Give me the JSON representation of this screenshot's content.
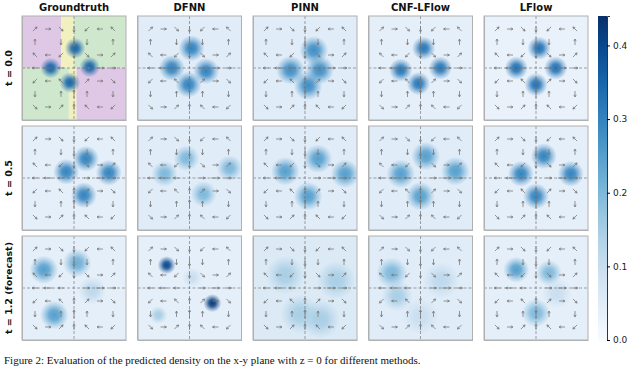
{
  "chart_data": {
    "type": "heatmap",
    "caption": "Figure 2: Evaluation of the predicted density on the x-y plane with z = 0 for different methods.",
    "columns": [
      "Groundtruth",
      "DFNN",
      "PINN",
      "CNF-LFlow",
      "LFlow"
    ],
    "rows": [
      "t = 0.0",
      "t = 0.5",
      "t = 1.2 (forecast)"
    ],
    "xlim": [
      -1,
      1
    ],
    "ylim": [
      -1,
      1
    ],
    "xticks": [
      0
    ],
    "yticks": [
      0
    ],
    "grid": true,
    "tick_labels": false,
    "colorbar": {
      "range": [
        0,
        0.44
      ],
      "ticks": [
        {
          "value": 0,
          "label": "0.0"
        },
        0.1,
        0.2,
        0.3,
        0.4
      ]
    },
    "quiver": {
      "x": [
        -0.75,
        -0.5,
        -0.25,
        0,
        0.25,
        0.5,
        0.75
      ],
      "y": [
        -0.75,
        -0.5,
        -0.25,
        0,
        0.25,
        0.5,
        0.75
      ],
      "u": [
        [
          0.5,
          0.71,
          0.5,
          0,
          -0.5,
          -0.71,
          -0.5
        ],
        [
          0,
          0,
          0,
          0,
          0,
          0,
          0
        ],
        [
          -0.5,
          -0.71,
          -0.5,
          0,
          0.5,
          0.71,
          0.5
        ],
        [
          -0.71,
          -1,
          -0.71,
          0,
          0.71,
          1,
          0.71
        ],
        [
          -0.5,
          -0.71,
          -0.5,
          0,
          0.5,
          0.71,
          0.5
        ],
        [
          0,
          0,
          0,
          0,
          0,
          0,
          0
        ],
        [
          0.5,
          0.71,
          0.5,
          0,
          -0.5,
          -0.71,
          -0.5
        ]
      ],
      "v": [
        [
          -0.5,
          0,
          0.5,
          0.71,
          0.5,
          0,
          -0.5
        ],
        [
          -0.71,
          0,
          0.71,
          1,
          0.71,
          0,
          -0.71
        ],
        [
          -0.5,
          0,
          0.5,
          0.71,
          0.5,
          0,
          -0.5
        ],
        [
          0,
          0,
          0,
          0,
          0,
          0,
          0
        ],
        [
          0.5,
          0,
          -0.5,
          -0.71,
          -0.5,
          0,
          0.5
        ],
        [
          0.71,
          0,
          -0.71,
          -1,
          -0.71,
          0,
          0.71
        ],
        [
          0.5,
          0,
          -0.5,
          -0.71,
          -0.5,
          0,
          0.5
        ]
      ]
    },
    "panels": [
      [
        {
          "base_density": 0.02,
          "regions": [
            {
              "color": "#d9b8de",
              "x": [
                -1,
                -0.25
              ],
              "y": [
                0,
                1
              ]
            },
            {
              "color": "#f2eeab",
              "x": [
                -0.25,
                0
              ],
              "y": [
                0,
                1
              ]
            },
            {
              "color": "#c4e3bd",
              "x": [
                0,
                1
              ],
              "y": [
                0,
                1
              ]
            },
            {
              "color": "#c4e3bd",
              "x": [
                -1,
                -0.1
              ],
              "y": [
                -1,
                0
              ]
            },
            {
              "color": "#f2eeab",
              "x": [
                -0.1,
                0.05
              ],
              "y": [
                -1,
                0
              ]
            },
            {
              "color": "#d9b8de",
              "x": [
                0.05,
                1
              ],
              "y": [
                -1,
                0
              ]
            }
          ],
          "blobs": [
            {
              "x": -0.45,
              "y": 0.0,
              "peak": 0.35,
              "width": 0.08
            },
            {
              "x": 0.02,
              "y": 0.38,
              "peak": 0.35,
              "width": 0.08
            },
            {
              "x": 0.3,
              "y": 0.02,
              "peak": 0.35,
              "width": 0.08
            },
            {
              "x": -0.08,
              "y": -0.28,
              "peak": 0.35,
              "width": 0.08
            }
          ]
        },
        {
          "base_density": 0.05,
          "blobs": [
            {
              "x": -0.34,
              "y": 0.0,
              "peak": 0.3,
              "width": 0.1
            },
            {
              "x": 0.04,
              "y": 0.38,
              "peak": 0.3,
              "width": 0.1
            },
            {
              "x": 0.32,
              "y": -0.06,
              "peak": 0.3,
              "width": 0.1
            },
            {
              "x": -0.02,
              "y": -0.32,
              "peak": 0.3,
              "width": 0.1
            }
          ]
        },
        {
          "base_density": 0.05,
          "blobs": [
            {
              "x": -0.28,
              "y": -0.04,
              "peak": 0.28,
              "width": 0.11
            },
            {
              "x": 0.17,
              "y": 0.34,
              "peak": 0.28,
              "width": 0.11
            },
            {
              "x": 0.28,
              "y": -0.04,
              "peak": 0.28,
              "width": 0.11
            },
            {
              "x": 0.06,
              "y": -0.34,
              "peak": 0.28,
              "width": 0.11
            }
          ]
        },
        {
          "base_density": 0.04,
          "blobs": [
            {
              "x": -0.38,
              "y": -0.04,
              "peak": 0.32,
              "width": 0.09
            },
            {
              "x": 0.06,
              "y": 0.38,
              "peak": 0.32,
              "width": 0.09
            },
            {
              "x": 0.38,
              "y": 0.0,
              "peak": 0.32,
              "width": 0.09
            },
            {
              "x": -0.04,
              "y": -0.3,
              "peak": 0.32,
              "width": 0.09
            }
          ]
        },
        {
          "base_density": 0.03,
          "blobs": [
            {
              "x": -0.38,
              "y": 0.0,
              "peak": 0.33,
              "width": 0.09
            },
            {
              "x": 0.06,
              "y": 0.38,
              "peak": 0.33,
              "width": 0.09
            },
            {
              "x": 0.38,
              "y": 0.0,
              "peak": 0.33,
              "width": 0.09
            },
            {
              "x": 0.0,
              "y": -0.32,
              "peak": 0.33,
              "width": 0.09
            }
          ]
        }
      ],
      [
        {
          "base_density": 0.04,
          "blobs": [
            {
              "x": -0.15,
              "y": 0.12,
              "peak": 0.3,
              "width": 0.1
            },
            {
              "x": 0.23,
              "y": 0.37,
              "peak": 0.3,
              "width": 0.1
            },
            {
              "x": 0.67,
              "y": 0.1,
              "peak": 0.3,
              "width": 0.1
            },
            {
              "x": 0.19,
              "y": -0.33,
              "peak": 0.3,
              "width": 0.1
            }
          ]
        },
        {
          "base_density": 0.05,
          "blobs": [
            {
              "x": -0.48,
              "y": 0.08,
              "peak": 0.2,
              "width": 0.1
            },
            {
              "x": -0.06,
              "y": 0.38,
              "peak": 0.2,
              "width": 0.1
            },
            {
              "x": 0.77,
              "y": 0.19,
              "peak": 0.2,
              "width": 0.1
            },
            {
              "x": 0.27,
              "y": -0.31,
              "peak": 0.2,
              "width": 0.1
            }
          ]
        },
        {
          "base_density": 0.05,
          "blobs": [
            {
              "x": -0.38,
              "y": 0.13,
              "peak": 0.25,
              "width": 0.11
            },
            {
              "x": 0.25,
              "y": 0.37,
              "peak": 0.25,
              "width": 0.11
            },
            {
              "x": 0.77,
              "y": 0.08,
              "peak": 0.25,
              "width": 0.11
            },
            {
              "x": 0.06,
              "y": -0.35,
              "peak": 0.25,
              "width": 0.11
            }
          ]
        },
        {
          "base_density": 0.05,
          "blobs": [
            {
              "x": -0.38,
              "y": 0.08,
              "peak": 0.25,
              "width": 0.11
            },
            {
              "x": 0.1,
              "y": 0.42,
              "peak": 0.25,
              "width": 0.11
            },
            {
              "x": 0.67,
              "y": 0.13,
              "peak": 0.25,
              "width": 0.11
            },
            {
              "x": 0.0,
              "y": -0.35,
              "peak": 0.25,
              "width": 0.11
            }
          ]
        },
        {
          "base_density": 0.04,
          "blobs": [
            {
              "x": -0.29,
              "y": 0.08,
              "peak": 0.3,
              "width": 0.1
            },
            {
              "x": 0.15,
              "y": 0.42,
              "peak": 0.3,
              "width": 0.1
            },
            {
              "x": 0.67,
              "y": 0.08,
              "peak": 0.3,
              "width": 0.1
            },
            {
              "x": 0.0,
              "y": -0.35,
              "peak": 0.3,
              "width": 0.1
            }
          ]
        }
      ],
      [
        {
          "base_density": 0.04,
          "blobs": [
            {
              "x": -0.58,
              "y": 0.35,
              "peak": 0.25,
              "width": 0.11
            },
            {
              "x": 0.06,
              "y": 0.48,
              "peak": 0.22,
              "width": 0.11
            },
            {
              "x": -0.38,
              "y": -0.52,
              "peak": 0.25,
              "width": 0.11
            },
            {
              "x": 0.35,
              "y": -0.05,
              "peak": 0.12,
              "width": 0.11
            }
          ]
        },
        {
          "base_density": 0.04,
          "blobs": [
            {
              "x": -0.44,
              "y": 0.44,
              "peak": 0.4,
              "width": 0.07
            },
            {
              "x": 0.44,
              "y": -0.29,
              "peak": 0.42,
              "width": 0.07
            },
            {
              "x": -0.6,
              "y": -0.52,
              "peak": 0.15,
              "width": 0.07
            },
            {
              "x": 0.05,
              "y": 0.2,
              "peak": 0.1,
              "width": 0.08
            }
          ]
        },
        {
          "base_density": 0.06,
          "blobs": [
            {
              "x": -0.38,
              "y": 0.25,
              "peak": 0.15,
              "width": 0.15
            },
            {
              "x": 0.6,
              "y": 0.15,
              "peak": 0.15,
              "width": 0.15
            },
            {
              "x": -0.1,
              "y": -0.5,
              "peak": 0.15,
              "width": 0.15
            },
            {
              "x": 0.3,
              "y": -0.6,
              "peak": 0.15,
              "width": 0.15
            }
          ]
        },
        {
          "base_density": 0.05,
          "blobs": [
            {
              "x": -0.55,
              "y": 0.29,
              "peak": 0.2,
              "width": 0.12
            },
            {
              "x": -0.45,
              "y": -0.15,
              "peak": 0.15,
              "width": 0.12
            },
            {
              "x": 0.4,
              "y": 0.15,
              "peak": 0.12,
              "width": 0.14
            },
            {
              "x": 0.0,
              "y": -0.55,
              "peak": 0.1,
              "width": 0.14
            }
          ]
        },
        {
          "base_density": 0.04,
          "blobs": [
            {
              "x": -0.38,
              "y": 0.35,
              "peak": 0.25,
              "width": 0.1
            },
            {
              "x": 0.25,
              "y": 0.29,
              "peak": 0.2,
              "width": 0.1
            },
            {
              "x": 0.0,
              "y": -0.48,
              "peak": 0.2,
              "width": 0.11
            },
            {
              "x": 0.4,
              "y": -0.1,
              "peak": 0.1,
              "width": 0.12
            }
          ]
        }
      ]
    ]
  }
}
